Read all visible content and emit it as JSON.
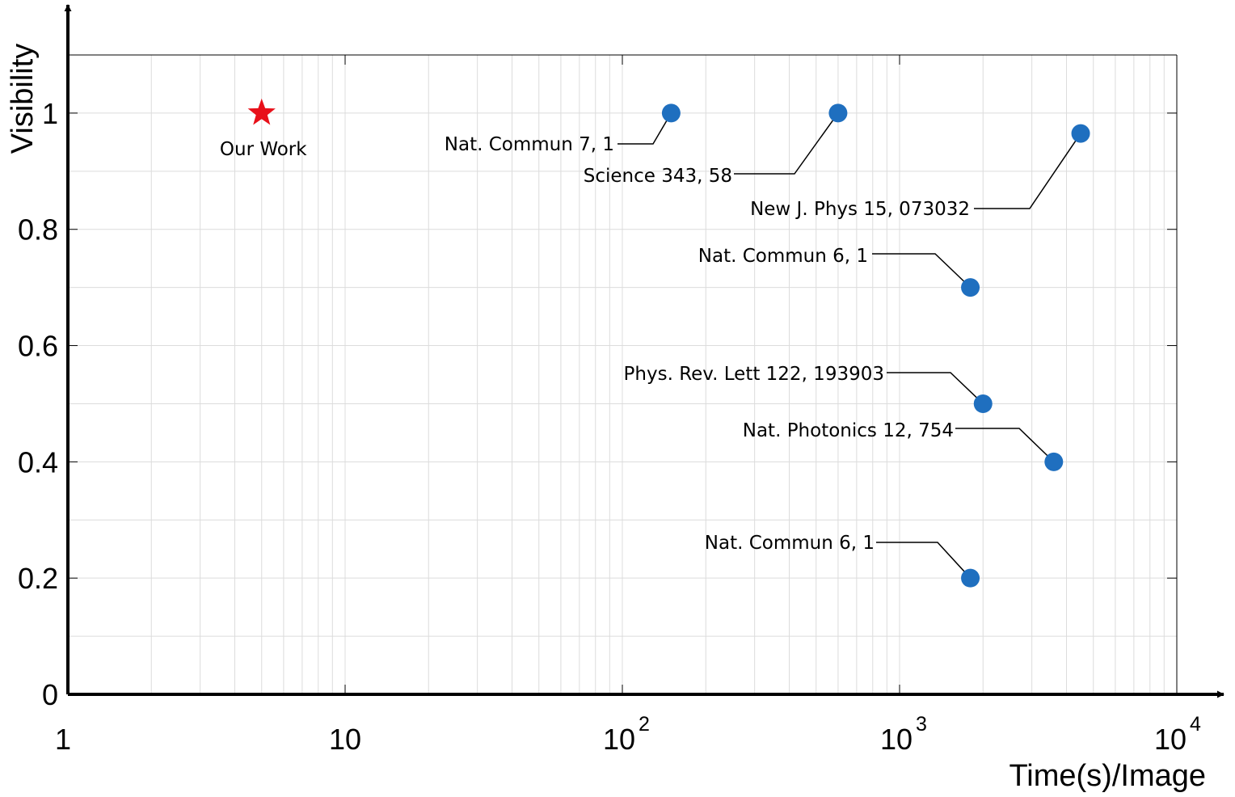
{
  "chart_data": {
    "type": "scatter",
    "title": "",
    "xlabel": "Time(s)/Image",
    "ylabel": "Visibility",
    "xscale": "log",
    "xlim": [
      1,
      10000
    ],
    "ylim": [
      0,
      1.1
    ],
    "grid": true,
    "x_tick_labels": [
      "1",
      "10",
      "10",
      "10",
      "10"
    ],
    "x_tick_exponents": [
      "",
      "",
      "2",
      "3",
      "4"
    ],
    "y_tick_labels": [
      "0",
      "0.2",
      "0.4",
      "0.6",
      "0.8",
      "1"
    ],
    "colors": {
      "highlight": "#e8101a",
      "points": "#1f6fbf",
      "grid": "#dcdcdc",
      "axis": "#000000"
    },
    "highlight": {
      "label": "Our Work",
      "x": 5,
      "y": 1.0,
      "marker": "star"
    },
    "points": [
      {
        "label": "Nat. Commun 7, 1",
        "x": 150,
        "y": 1.0
      },
      {
        "label": "Science 343, 58",
        "x": 600,
        "y": 1.0
      },
      {
        "label": "New J. Phys 15, 073032",
        "x": 4500,
        "y": 0.965
      },
      {
        "label": "Nat. Commun 6, 1",
        "x": 1800,
        "y": 0.7
      },
      {
        "label": "Phys. Rev. Lett 122, 193903",
        "x": 2000,
        "y": 0.5
      },
      {
        "label": "Nat. Photonics 12, 754",
        "x": 3600,
        "y": 0.4
      },
      {
        "label": "Nat. Commun 6, 1",
        "x": 1800,
        "y": 0.2
      }
    ]
  }
}
